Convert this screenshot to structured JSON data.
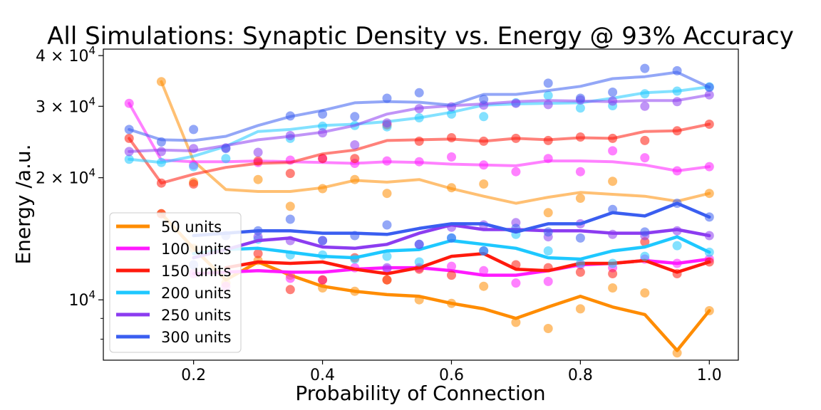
{
  "chart_data": {
    "type": "line",
    "title": "All Simulations: Synaptic Density vs. Energy @ 93% Accuracy",
    "xlabel": "Probability of Connection",
    "ylabel": "Energy /a.u.",
    "yscale": "log",
    "xlim": [
      0.06,
      1.045
    ],
    "ylim": [
      7100,
      41500
    ],
    "grid": false,
    "legend_position": "lower-left",
    "x_ticks": [
      {
        "value": 0.2,
        "label": "0.2"
      },
      {
        "value": 0.4,
        "label": "0.4"
      },
      {
        "value": 0.6,
        "label": "0.6"
      },
      {
        "value": 0.8,
        "label": "0.8"
      },
      {
        "value": 1.0,
        "label": "1.0"
      }
    ],
    "y_ticks": [
      {
        "value": 10000,
        "base": "10",
        "exp": "4",
        "mant": ""
      },
      {
        "value": 20000,
        "base": "10",
        "exp": "4",
        "mant": "2 × "
      },
      {
        "value": 30000,
        "base": "10",
        "exp": "4",
        "mant": "3 × "
      },
      {
        "value": 40000,
        "base": "10",
        "exp": "4",
        "mant": "4 × "
      }
    ],
    "y_minor_ticks": [
      8000,
      9000
    ],
    "x": [
      0.1,
      0.15,
      0.2,
      0.25,
      0.3,
      0.35,
      0.4,
      0.45,
      0.5,
      0.55,
      0.6,
      0.65,
      0.7,
      0.75,
      0.8,
      0.85,
      0.9,
      0.95,
      1.0
    ],
    "series": [
      {
        "name": "50 units",
        "color": "#ff8c00",
        "line_low": [
          null,
          16300,
          13400,
          11200,
          12400,
          11500,
          10800,
          10500,
          10300,
          10200,
          9800,
          9500,
          9000,
          9600,
          10200,
          9600,
          9200,
          7500,
          9400
        ],
        "points_low": [
          null,
          16300,
          13400,
          11000,
          12500,
          11500,
          10700,
          10500,
          11200,
          10000,
          9800,
          10800,
          8800,
          8500,
          9500,
          10700,
          10400,
          7400,
          9400
        ],
        "line_high": [
          null,
          34500,
          22000,
          18700,
          18500,
          18500,
          18900,
          19700,
          19500,
          19800,
          18800,
          18000,
          17300,
          17900,
          18400,
          18200,
          18000,
          17500,
          18300
        ],
        "points_high": [
          null,
          34500,
          19500,
          null,
          19800,
          17000,
          18800,
          19800,
          18300,
          null,
          18900,
          19300,
          null,
          16400,
          17800,
          19600,
          null,
          null,
          18300
        ]
      },
      {
        "name": "100 units",
        "color": "#ff1aff",
        "line_low": [
          null,
          null,
          11600,
          11700,
          11800,
          11700,
          11700,
          11900,
          12000,
          12000,
          11800,
          11500,
          11500,
          11800,
          12200,
          12300,
          12500,
          12300,
          12600
        ],
        "points_low": [
          null,
          null,
          11600,
          10800,
          null,
          11300,
          11200,
          12000,
          11900,
          12000,
          12100,
          11800,
          11000,
          11100,
          12200,
          12000,
          12600,
          12300,
          12600
        ],
        "line_high": [
          30500,
          22100,
          21900,
          21900,
          22000,
          21900,
          21800,
          21700,
          21900,
          21800,
          21600,
          21500,
          21400,
          22000,
          22000,
          21900,
          21500,
          20800,
          21300
        ],
        "points_high": [
          30500,
          null,
          21500,
          null,
          21800,
          22100,
          22300,
          21700,
          22000,
          21900,
          22500,
          21500,
          20700,
          22300,
          20700,
          23300,
          22400,
          20800,
          21300
        ]
      },
      {
        "name": "150 units",
        "color": "#ff1a0d",
        "line_low": [
          null,
          16300,
          null,
          12000,
          12400,
          12300,
          12400,
          11900,
          11600,
          12000,
          12800,
          13000,
          11900,
          11800,
          12300,
          12300,
          12500,
          11700,
          12400
        ],
        "points_low": [
          null,
          16300,
          null,
          null,
          13000,
          10600,
          11200,
          12700,
          11200,
          11900,
          11500,
          null,
          12200,
          12000,
          11700,
          11600,
          13900,
          11600,
          12400
        ],
        "line_high": [
          25000,
          19400,
          20400,
          21200,
          21700,
          21800,
          22900,
          23400,
          24700,
          24800,
          24900,
          24600,
          25000,
          24800,
          25100,
          25000,
          26000,
          26100,
          27100
        ],
        "points_high": [
          25000,
          19400,
          19300,
          null,
          22000,
          20500,
          22300,
          22300,
          27000,
          24600,
          25100,
          24600,
          25000,
          24700,
          25200,
          25000,
          24700,
          26100,
          27100
        ]
      },
      {
        "name": "200 units",
        "color": "#1ec8ff",
        "line_low": [
          null,
          null,
          13000,
          13300,
          13400,
          13100,
          12800,
          12700,
          13200,
          13300,
          14000,
          13700,
          13400,
          12700,
          12600,
          13200,
          13500,
          14300,
          13100
        ],
        "points_low": [
          null,
          null,
          null,
          null,
          14100,
          12900,
          12900,
          12600,
          12800,
          12400,
          14200,
          13200,
          14500,
          13200,
          12300,
          12300,
          12800,
          13600,
          13100
        ],
        "line_high": [
          22200,
          21800,
          22600,
          23900,
          26000,
          26300,
          26900,
          27100,
          27500,
          28100,
          29000,
          30200,
          30400,
          30500,
          30600,
          31400,
          32400,
          32700,
          33500
        ],
        "points_high": [
          22200,
          21800,
          21300,
          22300,
          null,
          25000,
          26800,
          26900,
          26700,
          28100,
          28700,
          28300,
          30600,
          31900,
          29700,
          30100,
          32200,
          32700,
          33500
        ]
      },
      {
        "name": "250 units",
        "color": "#8c3cf0",
        "line_low": [
          null,
          null,
          12700,
          13300,
          14000,
          14200,
          13500,
          13400,
          13700,
          14600,
          15300,
          14900,
          14900,
          14800,
          14800,
          14600,
          14600,
          14900,
          14400
        ],
        "points_low": [
          null,
          null,
          null,
          null,
          14300,
          14000,
          14000,
          null,
          12000,
          13700,
          15100,
          15300,
          15500,
          14300,
          15400,
          14500,
          14400,
          14800,
          14400
        ],
        "line_high": [
          23200,
          23400,
          23300,
          24000,
          24800,
          25300,
          25900,
          26900,
          28700,
          29700,
          30100,
          30400,
          30800,
          31000,
          30900,
          30800,
          31000,
          31000,
          32000
        ],
        "points_high": [
          23200,
          23200,
          23600,
          23700,
          23100,
          25400,
          25800,
          24100,
          27300,
          29600,
          29900,
          30200,
          30500,
          30300,
          31100,
          30900,
          30000,
          30800,
          32000
        ]
      },
      {
        "name": "300 units",
        "color": "#3a5ef0",
        "line_low": [
          null,
          null,
          14400,
          14600,
          14800,
          14800,
          14600,
          14600,
          14500,
          15000,
          15400,
          15400,
          14700,
          15400,
          15400,
          16400,
          16100,
          17300,
          16000
        ],
        "points_low": [
          null,
          null,
          12200,
          14400,
          14800,
          15800,
          14000,
          14400,
          15300,
          13700,
          14200,
          13200,
          15000,
          14700,
          14200,
          16700,
          14700,
          17300,
          16000
        ],
        "line_high": [
          26300,
          24800,
          24700,
          25300,
          26900,
          28300,
          29300,
          30600,
          30800,
          30700,
          30200,
          32100,
          32100,
          32800,
          33600,
          35100,
          35500,
          36400,
          33400
        ],
        "points_high": [
          26300,
          24500,
          26300,
          23600,
          null,
          28400,
          28700,
          28300,
          31400,
          32400,
          null,
          31200,
          null,
          34200,
          31400,
          32500,
          37200,
          36700,
          33400
        ]
      }
    ]
  }
}
